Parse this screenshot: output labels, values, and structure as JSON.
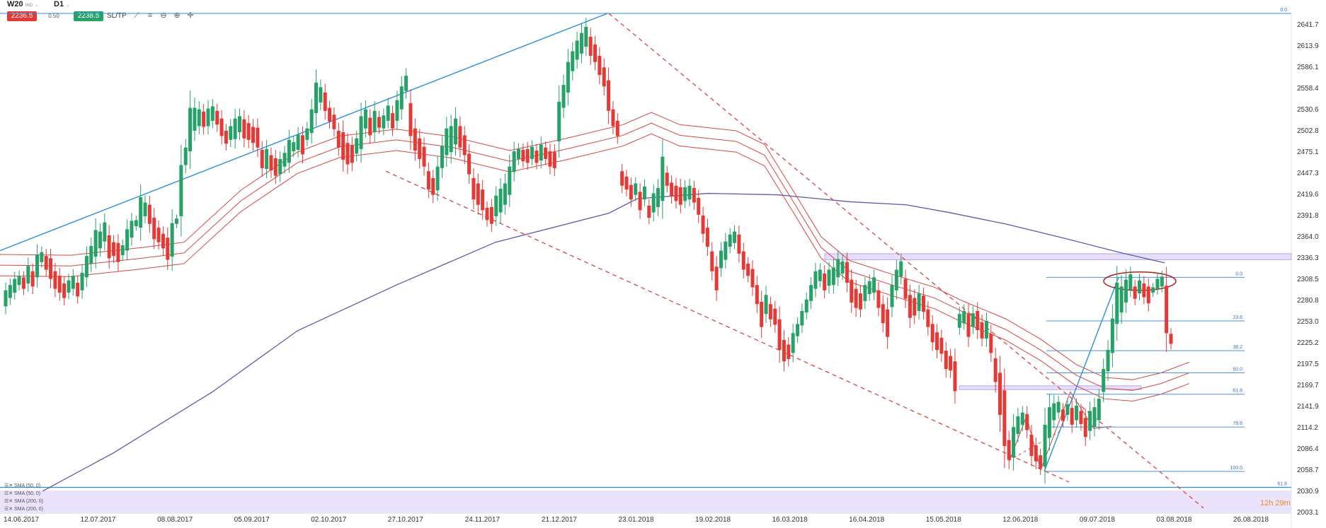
{
  "toolbar": {
    "symbol": "W20",
    "symbol_sub": "IND",
    "timeframe": "D1",
    "bid": "2236.5",
    "spread": "0.50",
    "ask": "2238.5",
    "sltp": "SL/TP",
    "icons": [
      "line-tool-icon",
      "fib-tool-icon",
      "zoom-out-icon",
      "zoom-in-icon",
      "crosshair-icon"
    ]
  },
  "legend": [
    "SMA (50, 0)",
    "SMA (50, 0)",
    "SMA (200, 0)",
    "SMA (200, 0)"
  ],
  "timer": "12h 29m",
  "colors": {
    "up": "#26a269",
    "down": "#e53935",
    "trend": "#2b8fd9",
    "sma200": "#5c5aa8",
    "envelope": "#d64545",
    "fib": "#4a90e2",
    "zone": "#e6defa"
  },
  "chart_data": {
    "type": "candlestick",
    "y_ticks": [
      "2641.7",
      "2613.9",
      "2586.1",
      "2558.4",
      "2530.6",
      "2502.8",
      "2475.1",
      "2447.3",
      "2419.6",
      "2391.8",
      "2364.0",
      "2336.3",
      "2308.5",
      "2280.8",
      "2253.0",
      "2225.2",
      "2197.5",
      "2169.7",
      "2141.9",
      "2114.2",
      "2086.4",
      "2058.7",
      "2030.9",
      "2003.1"
    ],
    "x_ticks": [
      "14.06.2017",
      "12.07.2017",
      "08.08.2017",
      "05.09.2017",
      "02.10.2017",
      "27.10.2017",
      "24.11.2017",
      "21.12.2017",
      "23.01.2018",
      "19.02.2018",
      "16.03.2018",
      "16.04.2018",
      "15.05.2018",
      "12.06.2018",
      "09.07.2018",
      "03.08.2018",
      "26.08.2018"
    ],
    "ylim": [
      2003.1,
      2659
    ],
    "top_level_label": "0.0",
    "bottom_level_label": "61.8",
    "fib_levels": [
      "0.0",
      "23.6",
      "38.2",
      "50.0",
      "61.8",
      "78.6",
      "100.0"
    ],
    "fib_values": [
      2310,
      2253,
      2214,
      2185,
      2157,
      2114,
      2056
    ],
    "candles": [
      [
        2272,
        2293
      ],
      [
        2283,
        2300
      ],
      [
        2290,
        2308
      ],
      [
        2300,
        2312
      ],
      [
        2295,
        2310
      ],
      [
        2302,
        2325
      ],
      [
        2298,
        2318
      ],
      [
        2310,
        2340
      ],
      [
        2330,
        2343
      ],
      [
        2320,
        2338
      ],
      [
        2308,
        2335
      ],
      [
        2295,
        2318
      ],
      [
        2290,
        2312
      ],
      [
        2283,
        2302
      ],
      [
        2290,
        2306
      ],
      [
        2295,
        2312
      ],
      [
        2285,
        2303
      ],
      [
        2293,
        2316
      ],
      [
        2310,
        2338
      ],
      [
        2328,
        2351
      ],
      [
        2337,
        2372
      ],
      [
        2348,
        2370
      ],
      [
        2357,
        2382
      ],
      [
        2335,
        2365
      ],
      [
        2338,
        2356
      ],
      [
        2330,
        2355
      ],
      [
        2339,
        2352
      ],
      [
        2345,
        2373
      ],
      [
        2362,
        2384
      ],
      [
        2377,
        2385
      ],
      [
        2375,
        2415
      ],
      [
        2390,
        2408
      ],
      [
        2380,
        2405
      ],
      [
        2360,
        2388
      ],
      [
        2356,
        2375
      ],
      [
        2348,
        2367
      ],
      [
        2333,
        2362
      ],
      [
        2337,
        2381
      ],
      [
        2380,
        2387
      ],
      [
        2390,
        2457
      ],
      [
        2457,
        2480
      ],
      [
        2475,
        2532
      ],
      [
        2502,
        2532
      ],
      [
        2508,
        2530
      ],
      [
        2507,
        2527
      ],
      [
        2508,
        2531
      ],
      [
        2515,
        2534
      ],
      [
        2510,
        2528
      ],
      [
        2495,
        2518
      ],
      [
        2485,
        2502
      ],
      [
        2490,
        2508
      ],
      [
        2491,
        2518
      ],
      [
        2500,
        2521
      ],
      [
        2492,
        2517
      ],
      [
        2490,
        2512
      ],
      [
        2486,
        2507
      ],
      [
        2480,
        2506
      ],
      [
        2453,
        2477
      ],
      [
        2452,
        2478
      ],
      [
        2450,
        2470
      ],
      [
        2443,
        2466
      ],
      [
        2445,
        2465
      ],
      [
        2455,
        2473
      ],
      [
        2460,
        2490
      ],
      [
        2475,
        2487
      ],
      [
        2477,
        2497
      ],
      [
        2471,
        2496
      ],
      [
        2490,
        2505
      ],
      [
        2499,
        2530
      ],
      [
        2525,
        2565
      ],
      [
        2539,
        2559
      ],
      [
        2528,
        2552
      ],
      [
        2514,
        2532
      ],
      [
        2504,
        2523
      ],
      [
        2480,
        2502
      ],
      [
        2464,
        2500
      ],
      [
        2458,
        2486
      ],
      [
        2460,
        2483
      ],
      [
        2472,
        2492
      ],
      [
        2478,
        2521
      ],
      [
        2505,
        2530
      ],
      [
        2496,
        2519
      ],
      [
        2500,
        2528
      ],
      [
        2506,
        2520
      ],
      [
        2505,
        2522
      ],
      [
        2515,
        2535
      ],
      [
        2505,
        2525
      ],
      [
        2515,
        2542
      ],
      [
        2530,
        2560
      ],
      [
        2554,
        2574
      ],
      [
        2495,
        2538
      ],
      [
        2476,
        2505
      ],
      [
        2465,
        2492
      ],
      [
        2455,
        2481
      ],
      [
        2425,
        2449
      ],
      [
        2418,
        2440
      ],
      [
        2424,
        2455
      ],
      [
        2453,
        2482
      ],
      [
        2470,
        2505
      ],
      [
        2474,
        2508
      ],
      [
        2484,
        2518
      ],
      [
        2480,
        2508
      ],
      [
        2470,
        2496
      ],
      [
        2445,
        2472
      ],
      [
        2412,
        2440
      ],
      [
        2405,
        2433
      ],
      [
        2398,
        2425
      ],
      [
        2385,
        2401
      ],
      [
        2380,
        2402
      ],
      [
        2390,
        2417
      ],
      [
        2395,
        2426
      ],
      [
        2405,
        2433
      ],
      [
        2418,
        2455
      ],
      [
        2448,
        2475
      ],
      [
        2465,
        2478
      ],
      [
        2462,
        2477
      ],
      [
        2460,
        2478
      ],
      [
        2465,
        2481
      ],
      [
        2460,
        2476
      ],
      [
        2463,
        2484
      ],
      [
        2465,
        2480
      ],
      [
        2455,
        2475
      ],
      [
        2453,
        2474
      ],
      [
        2488,
        2540
      ],
      [
        2532,
        2562
      ],
      [
        2552,
        2592
      ],
      [
        2580,
        2606
      ],
      [
        2595,
        2620
      ],
      [
        2603,
        2630
      ],
      [
        2612,
        2638
      ],
      [
        2600,
        2625
      ],
      [
        2592,
        2615
      ],
      [
        2575,
        2600
      ],
      [
        2560,
        2585
      ],
      [
        2528,
        2568
      ],
      [
        2508,
        2530
      ],
      [
        2495,
        2515
      ],
      [
        2430,
        2449
      ],
      [
        2425,
        2442
      ],
      [
        2412,
        2431
      ],
      [
        2418,
        2433
      ],
      [
        2398,
        2422
      ],
      [
        2412,
        2429
      ],
      [
        2388,
        2404
      ],
      [
        2395,
        2420
      ],
      [
        2402,
        2427
      ],
      [
        2410,
        2468
      ],
      [
        2430,
        2447
      ],
      [
        2416,
        2434
      ],
      [
        2410,
        2430
      ],
      [
        2405,
        2428
      ],
      [
        2410,
        2428
      ],
      [
        2412,
        2430
      ],
      [
        2408,
        2427
      ],
      [
        2392,
        2414
      ],
      [
        2367,
        2391
      ],
      [
        2350,
        2375
      ],
      [
        2318,
        2344
      ],
      [
        2293,
        2324
      ],
      [
        2322,
        2345
      ],
      [
        2333,
        2357
      ],
      [
        2350,
        2366
      ],
      [
        2355,
        2370
      ],
      [
        2341,
        2366
      ],
      [
        2320,
        2344
      ],
      [
        2312,
        2328
      ],
      [
        2297,
        2321
      ],
      [
        2275,
        2300
      ],
      [
        2245,
        2278
      ],
      [
        2262,
        2287
      ],
      [
        2255,
        2275
      ],
      [
        2248,
        2269
      ],
      [
        2215,
        2255
      ],
      [
        2200,
        2228
      ],
      [
        2203,
        2222
      ],
      [
        2211,
        2237
      ],
      [
        2233,
        2249
      ],
      [
        2247,
        2266
      ],
      [
        2264,
        2281
      ],
      [
        2279,
        2300
      ],
      [
        2295,
        2318
      ],
      [
        2305,
        2320
      ],
      [
        2293,
        2315
      ],
      [
        2299,
        2320
      ],
      [
        2300,
        2323
      ],
      [
        2310,
        2334
      ],
      [
        2315,
        2331
      ],
      [
        2303,
        2330
      ],
      [
        2277,
        2307
      ],
      [
        2270,
        2295
      ],
      [
        2268,
        2289
      ],
      [
        2279,
        2300
      ],
      [
        2288,
        2305
      ],
      [
        2290,
        2310
      ],
      [
        2270,
        2293
      ],
      [
        2250,
        2275
      ],
      [
        2232,
        2268
      ],
      [
        2271,
        2300
      ],
      [
        2293,
        2320
      ],
      [
        2311,
        2331
      ],
      [
        2282,
        2308
      ],
      [
        2257,
        2287
      ],
      [
        2260,
        2283
      ],
      [
        2266,
        2289
      ],
      [
        2265,
        2286
      ],
      [
        2245,
        2268
      ],
      [
        2225,
        2249
      ],
      [
        2215,
        2238
      ],
      [
        2210,
        2231
      ],
      [
        2190,
        2214
      ],
      [
        2188,
        2207
      ],
      [
        2161,
        2200
      ],
      [
        2244,
        2262
      ],
      [
        2250,
        2266
      ],
      [
        2232,
        2262
      ],
      [
        2245,
        2263
      ],
      [
        2241,
        2266
      ],
      [
        2230,
        2251
      ],
      [
        2230,
        2253
      ],
      [
        2211,
        2236
      ],
      [
        2173,
        2204
      ],
      [
        2130,
        2185
      ],
      [
        2089,
        2162
      ],
      [
        2071,
        2097
      ],
      [
        2074,
        2114
      ],
      [
        2105,
        2128
      ],
      [
        2117,
        2133
      ],
      [
        2110,
        2131
      ],
      [
        2076,
        2104
      ],
      [
        2069,
        2090
      ],
      [
        2060,
        2077
      ],
      [
        2062,
        2117
      ],
      [
        2100,
        2140
      ],
      [
        2123,
        2145
      ],
      [
        2133,
        2147
      ],
      [
        2122,
        2137
      ],
      [
        2130,
        2144
      ],
      [
        2117,
        2139
      ],
      [
        2123,
        2142
      ],
      [
        2118,
        2135
      ],
      [
        2101,
        2126
      ],
      [
        2109,
        2135
      ],
      [
        2114,
        2140
      ],
      [
        2123,
        2151
      ],
      [
        2160,
        2190
      ],
      [
        2187,
        2215
      ],
      [
        2211,
        2256
      ],
      [
        2249,
        2303
      ],
      [
        2264,
        2298
      ],
      [
        2277,
        2307
      ],
      [
        2294,
        2314
      ],
      [
        2282,
        2298
      ],
      [
        2289,
        2306
      ],
      [
        2284,
        2302
      ],
      [
        2276,
        2298
      ],
      [
        2290,
        2297
      ],
      [
        2295,
        2308
      ],
      [
        2298,
        2311
      ],
      [
        2237,
        2299
      ],
      [
        2223,
        2236
      ]
    ]
  }
}
